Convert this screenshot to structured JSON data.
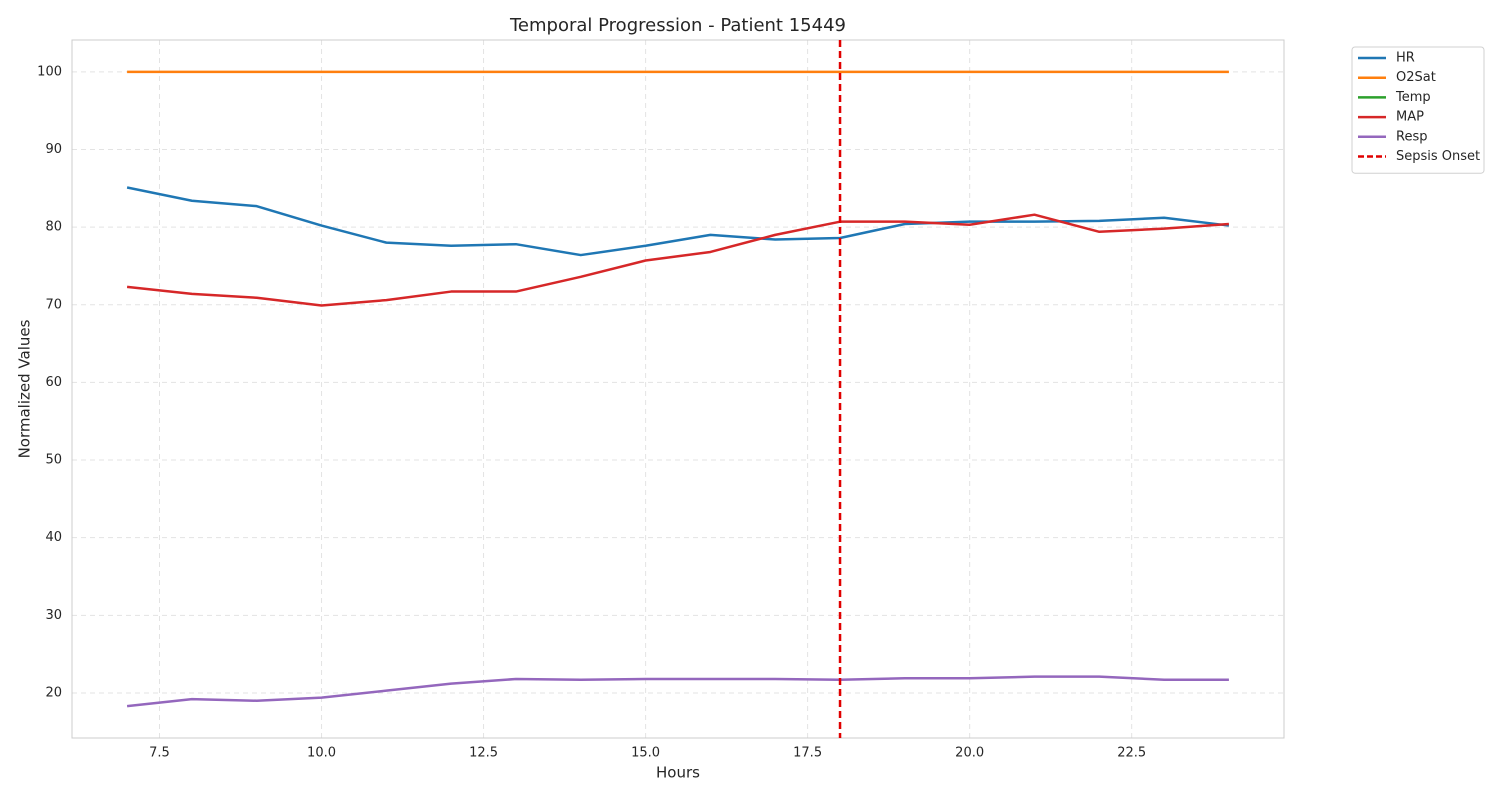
{
  "chart_data": {
    "type": "line",
    "title": "Temporal Progression - Patient 15449",
    "xlabel": "Hours",
    "ylabel": "Normalized Values",
    "x": [
      7,
      8,
      9,
      10,
      11,
      12,
      13,
      14,
      15,
      16,
      17,
      18,
      19,
      20,
      21,
      22,
      23,
      24
    ],
    "series": [
      {
        "name": "HR",
        "color": "#1f77b4",
        "values": [
          85.1,
          83.4,
          82.7,
          80.2,
          78.0,
          77.6,
          77.8,
          76.4,
          77.6,
          79.0,
          78.4,
          78.6,
          80.4,
          80.7,
          80.7,
          80.8,
          81.2,
          80.2
        ]
      },
      {
        "name": "O2Sat",
        "color": "#ff7f0e",
        "values": [
          100,
          100,
          100,
          100,
          100,
          100,
          100,
          100,
          100,
          100,
          100,
          100,
          100,
          100,
          100,
          100,
          100,
          100
        ]
      },
      {
        "name": "Temp",
        "color": "#2ca02c",
        "values": [
          null,
          null,
          null,
          null,
          null,
          null,
          null,
          null,
          null,
          null,
          null,
          null,
          null,
          null,
          null,
          null,
          null,
          null
        ]
      },
      {
        "name": "MAP",
        "color": "#d62728",
        "values": [
          72.3,
          71.4,
          70.9,
          69.9,
          70.6,
          71.7,
          71.7,
          73.6,
          75.7,
          76.8,
          79.0,
          80.7,
          80.7,
          80.3,
          81.6,
          79.4,
          79.8,
          80.4
        ]
      },
      {
        "name": "Resp",
        "color": "#9467bd",
        "values": [
          18.3,
          19.2,
          19.0,
          19.4,
          20.3,
          21.2,
          21.8,
          21.7,
          21.8,
          21.8,
          21.8,
          21.7,
          21.9,
          21.9,
          22.1,
          22.1,
          21.7,
          21.7
        ]
      }
    ],
    "vline": {
      "name": "Sepsis Onset",
      "x": 18,
      "color": "#e00000"
    },
    "xlim": [
      6.15,
      24.85
    ],
    "ylim": [
      14.2,
      104.1
    ],
    "xticks": [
      {
        "value": 7.5,
        "label": "7.5"
      },
      {
        "value": 10,
        "label": "10.0"
      },
      {
        "value": 12.5,
        "label": "12.5"
      },
      {
        "value": 15,
        "label": "15.0"
      },
      {
        "value": 17.5,
        "label": "17.5"
      },
      {
        "value": 20,
        "label": "20.0"
      },
      {
        "value": 22.5,
        "label": "22.5"
      }
    ],
    "yticks": [
      20,
      30,
      40,
      50,
      60,
      70,
      80,
      90,
      100
    ],
    "grid": true,
    "legend": "outside-upper-right"
  }
}
